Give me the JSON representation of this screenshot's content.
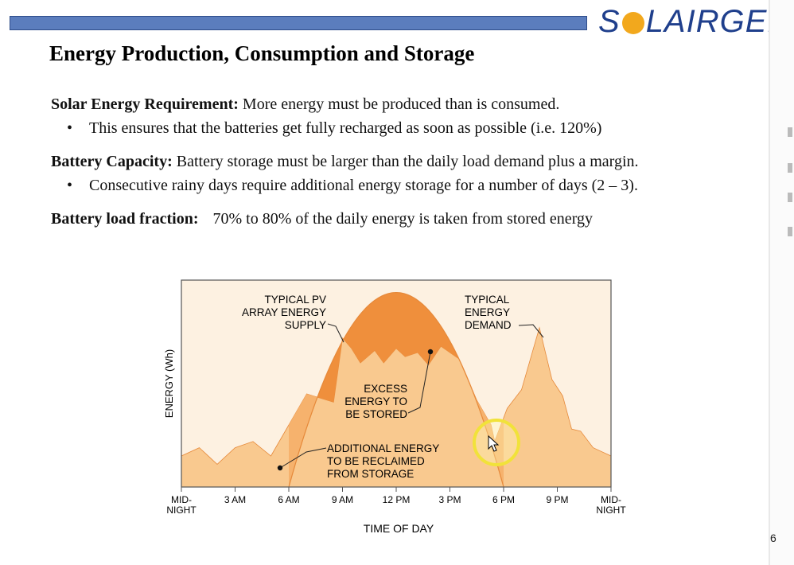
{
  "header": {
    "brand_text": "SOLAIRGEN",
    "brand_parts": {
      "before": "S",
      "after": "LAIRGEN"
    },
    "bar_color": "#5b7dbd",
    "brand_color": "#1f3f8c",
    "sun_color": "#f2a81d"
  },
  "slide": {
    "title": "Energy Production, Consumption and Storage",
    "req_label": "Solar Energy Requirement:",
    "req_text": " More energy must be produced than is consumed.",
    "req_bullet": "This ensures that the batteries get fully recharged as soon as possible (i.e. 120%)",
    "cap_label": "Battery Capacity:",
    "cap_text": " Battery storage must be larger than the daily load demand plus a margin.",
    "cap_bullet": "Consecutive rainy days require additional energy storage for a number of days (2 – 3).",
    "frac_label": "Battery load fraction:",
    "frac_text": "70% to 80% of the daily energy is taken from stored energy",
    "slide_number": "6"
  },
  "chart_data": {
    "type": "area",
    "xlabel": "TIME OF DAY",
    "ylabel": "ENERGY (Wh)",
    "x_ticks": [
      "MID-\nNIGHT",
      "3 AM",
      "6 AM",
      "9 AM",
      "12 PM",
      "3 PM",
      "6 PM",
      "9 PM",
      "MID-\nNIGHT"
    ],
    "x_range_hours": [
      0,
      24
    ],
    "y_range": [
      0,
      100
    ],
    "annotations": {
      "pv_supply": [
        "TYPICAL PV",
        "ARRAY ENERGY",
        "SUPPLY"
      ],
      "demand": [
        "TYPICAL",
        "ENERGY",
        "DEMAND"
      ],
      "excess": [
        "EXCESS",
        "ENERGY TO",
        "BE STORED"
      ],
      "reclaimed": [
        "ADDITIONAL ENERGY",
        "TO BE RECLAIMED",
        "FROM STORAGE"
      ]
    },
    "series": [
      {
        "name": "TYPICAL PV ARRAY ENERGY SUPPLY",
        "x": [
          6,
          12,
          18
        ],
        "y": [
          0,
          94,
          0
        ]
      },
      {
        "name": "TYPICAL ENERGY DEMAND",
        "x": [
          0,
          1,
          2,
          3,
          4,
          5,
          6,
          7,
          8.5,
          9,
          9.5,
          10,
          10.8,
          11.3,
          12,
          12.5,
          13.2,
          13.8,
          14.5,
          15.5,
          16.5,
          17.3,
          17.5,
          18.2,
          19,
          20,
          20.7,
          21.3,
          21.8,
          22.3,
          23,
          24
        ],
        "y": [
          15,
          19,
          11,
          19,
          22,
          15,
          30,
          45,
          41,
          72,
          67,
          60,
          66,
          60,
          67,
          63,
          65,
          59,
          68,
          62,
          42,
          30,
          22,
          38,
          47,
          77,
          52,
          44,
          28,
          27,
          19,
          15
        ]
      }
    ],
    "colors": {
      "demand_fill": "#f9c98f",
      "reclaimed_fill": "#f6b26d",
      "excess_fill": "#ef8f3c",
      "outline": "#e6893a",
      "plot_bg": "#fdf1e1",
      "frame": "#555555"
    }
  }
}
